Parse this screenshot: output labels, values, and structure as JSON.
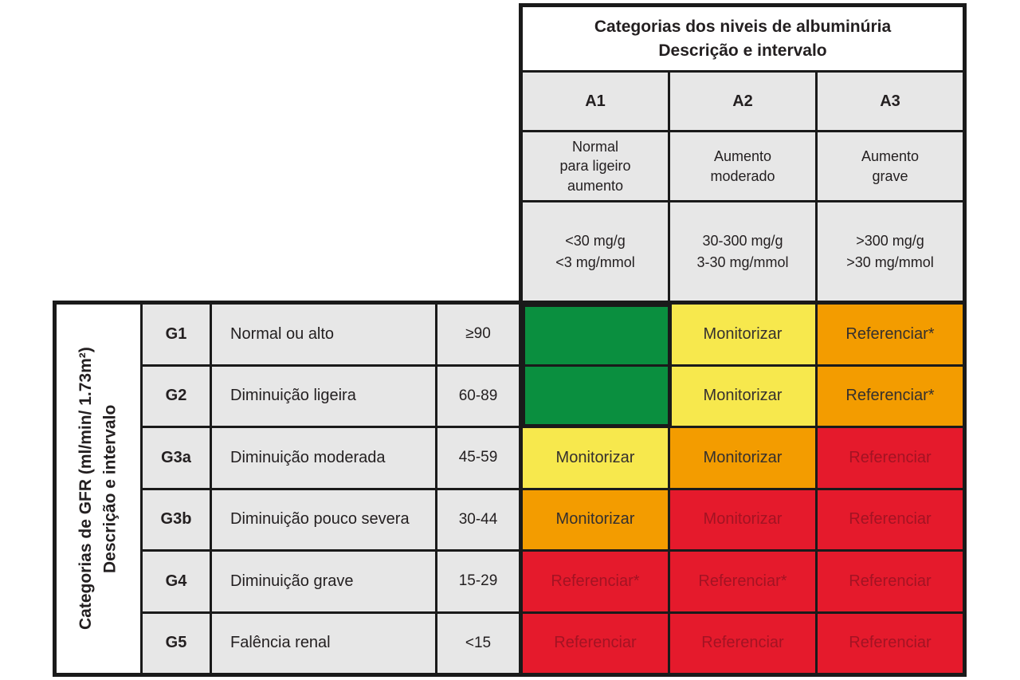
{
  "albuminuria": {
    "title": "Categorias dos niveis de albuminúria\nDescrição e intervalo",
    "columns": [
      {
        "code": "A1",
        "description": "Normal\npara ligeiro\naumento",
        "range": "<30 mg/g\n<3 mg/mmol"
      },
      {
        "code": "A2",
        "description": "Aumento\nmoderado",
        "range": "30-300 mg/g\n3-30 mg/mmol"
      },
      {
        "code": "A3",
        "description": "Aumento\ngrave",
        "range": ">300 mg/g\n>30 mg/mmol"
      }
    ]
  },
  "gfr": {
    "title": "Categorias de GFR (ml/min/ 1.73m²)\nDescrição e intervalo",
    "rows": [
      {
        "code": "G1",
        "description": "Normal ou alto",
        "range": "≥90"
      },
      {
        "code": "G2",
        "description": "Diminuição ligeira",
        "range": "60-89"
      },
      {
        "code": "G3a",
        "description": "Diminuição moderada",
        "range": "45-59"
      },
      {
        "code": "G3b",
        "description": "Diminuição pouco severa",
        "range": "30-44"
      },
      {
        "code": "G4",
        "description": "Diminuição grave",
        "range": "15-29"
      },
      {
        "code": "G5",
        "description": "Falência renal",
        "range": "<15"
      }
    ]
  },
  "risk_matrix": {
    "cells": [
      [
        {
          "color": "green",
          "label": ""
        },
        {
          "color": "yellow",
          "label": "Monitorizar"
        },
        {
          "color": "orange",
          "label": "Referenciar*"
        }
      ],
      [
        {
          "color": "green",
          "label": ""
        },
        {
          "color": "yellow",
          "label": "Monitorizar"
        },
        {
          "color": "orange",
          "label": "Referenciar*"
        }
      ],
      [
        {
          "color": "yellow",
          "label": "Monitorizar"
        },
        {
          "color": "orange",
          "label": "Monitorizar"
        },
        {
          "color": "red",
          "label": "Referenciar"
        }
      ],
      [
        {
          "color": "orange",
          "label": "Monitorizar"
        },
        {
          "color": "red",
          "label": "Monitorizar"
        },
        {
          "color": "red",
          "label": "Referenciar"
        }
      ],
      [
        {
          "color": "red",
          "label": "Referenciar*"
        },
        {
          "color": "red",
          "label": "Referenciar*"
        },
        {
          "color": "red",
          "label": "Referenciar"
        }
      ],
      [
        {
          "color": "red",
          "label": "Referenciar"
        },
        {
          "color": "red",
          "label": "Referenciar"
        },
        {
          "color": "red",
          "label": "Referenciar"
        }
      ]
    ]
  },
  "colors": {
    "green": "#0a8f3f",
    "yellow": "#f7e84d",
    "orange": "#f39c00",
    "red": "#e51a2c",
    "red_cell_text": "#a31323",
    "cell_gray": "#e7e7e7",
    "grid_line": "#1a1a1a",
    "text": "#231f20"
  },
  "chart_data": {
    "type": "table",
    "column_header_title": "Categorias dos niveis de albuminúria / Descrição e intervalo",
    "row_header_title": "Categorias de GFR (ml/min/ 1.73m²) / Descrição e intervalo",
    "columns": [
      {
        "code": "A1",
        "description": "Normal para ligeiro aumento",
        "range": "<30 mg/g; <3 mg/mmol"
      },
      {
        "code": "A2",
        "description": "Aumento moderado",
        "range": "30-300 mg/g; 3-30 mg/mmol"
      },
      {
        "code": "A3",
        "description": "Aumento grave",
        "range": ">300 mg/g; >30 mg/mmol"
      }
    ],
    "rows": [
      {
        "code": "G1",
        "description": "Normal ou alto",
        "range": "≥90"
      },
      {
        "code": "G2",
        "description": "Diminuição ligeira",
        "range": "60-89"
      },
      {
        "code": "G3a",
        "description": "Diminuição moderada",
        "range": "45-59"
      },
      {
        "code": "G3b",
        "description": "Diminuição pouco severa",
        "range": "30-44"
      },
      {
        "code": "G4",
        "description": "Diminuição grave",
        "range": "15-29"
      },
      {
        "code": "G5",
        "description": "Falência renal",
        "range": "<15"
      }
    ],
    "cell_actions": [
      [
        "",
        "Monitorizar",
        "Referenciar*"
      ],
      [
        "",
        "Monitorizar",
        "Referenciar*"
      ],
      [
        "Monitorizar",
        "Monitorizar",
        "Referenciar"
      ],
      [
        "Monitorizar",
        "Monitorizar",
        "Referenciar"
      ],
      [
        "Referenciar*",
        "Referenciar*",
        "Referenciar"
      ],
      [
        "Referenciar",
        "Referenciar",
        "Referenciar"
      ]
    ],
    "cell_colors": [
      [
        "green",
        "yellow",
        "orange"
      ],
      [
        "green",
        "yellow",
        "orange"
      ],
      [
        "yellow",
        "orange",
        "red"
      ],
      [
        "orange",
        "red",
        "red"
      ],
      [
        "red",
        "red",
        "red"
      ],
      [
        "red",
        "red",
        "red"
      ]
    ]
  }
}
